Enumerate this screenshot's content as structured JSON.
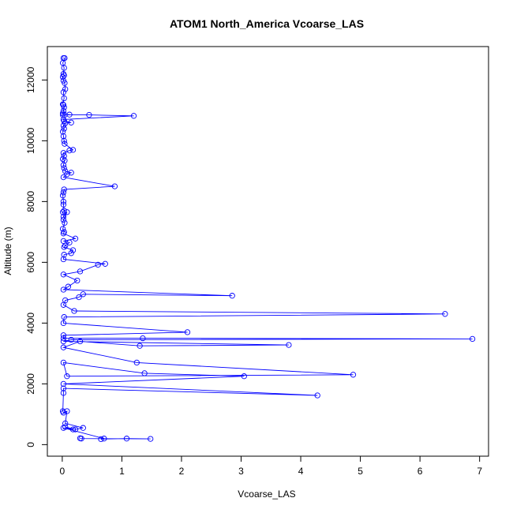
{
  "chart_data": {
    "type": "line",
    "title": "ATOM1 North_America Vcoarse_LAS",
    "xlabel": "Vcoarse_LAS",
    "ylabel": "Altitude (m)",
    "xlim": [
      -0.25,
      7.15
    ],
    "ylim": [
      -380,
      13100
    ],
    "xticks": [
      0,
      1,
      2,
      3,
      4,
      5,
      6,
      7
    ],
    "yticks": [
      0,
      2000,
      4000,
      6000,
      8000,
      10000,
      12000
    ],
    "grid": false,
    "legend": "none",
    "series": [
      {
        "color": "#0000ff",
        "marker": "open-circle",
        "x": [
          0.02,
          0.04,
          0.01,
          0.03,
          0.02,
          0.03,
          0.01,
          0.02,
          0.04,
          0.05,
          0.02,
          0.03,
          0.01,
          0.02,
          0.03,
          0.02,
          0.01,
          0.04,
          0.12,
          0.01,
          0.45,
          1.2,
          0.02,
          0.03,
          0.15,
          0.05,
          0.02,
          0.03,
          0.01,
          0.02,
          0.03,
          0.04,
          0.18,
          0.12,
          0.02,
          0.03,
          0.01,
          0.04,
          0.02,
          0.03,
          0.05,
          0.15,
          0.08,
          0.02,
          0.88,
          0.03,
          0.02,
          0.01,
          0.02,
          0.02,
          0.03,
          0.01,
          0.02,
          0.08,
          0.02,
          0.04,
          0.01,
          0.03,
          0.02,
          0.22,
          0.02,
          0.12,
          0.05,
          0.03,
          0.18,
          0.15,
          0.03,
          0.02,
          0.72,
          0.6,
          0.3,
          0.02,
          0.25,
          0.1,
          0.02,
          2.85,
          0.35,
          0.28,
          0.05,
          0.02,
          0.2,
          6.42,
          0.03,
          0.02,
          2.1,
          0.02,
          0.02,
          1.35,
          6.88,
          0.15,
          0.02,
          3.8,
          1.3,
          0.3,
          0.02,
          1.25,
          4.88,
          0.08,
          0.02,
          1.38,
          3.05,
          0.02,
          4.28,
          0.02,
          0.02,
          0.01,
          0.02,
          0.08,
          0.05,
          0.35,
          0.22,
          0.05,
          0.18,
          0.02,
          0.7,
          0.65,
          1.08,
          1.48,
          0.32,
          0.3
        ]
      },
      {
        "y": [
          12720,
          12720,
          12560,
          12400,
          12200,
          12150,
          12100,
          11980,
          11900,
          11700,
          11600,
          11400,
          11200,
          11180,
          11100,
          10980,
          10900,
          10850,
          10860,
          10850,
          10850,
          10820,
          10700,
          10650,
          10600,
          10580,
          10500,
          10400,
          10300,
          10150,
          10000,
          9900,
          9700,
          9680,
          9600,
          9500,
          9400,
          9350,
          9200,
          9100,
          9000,
          8950,
          8900,
          8800,
          8500,
          8400,
          8300,
          8200,
          8000,
          7900,
          7700,
          7650,
          7500,
          7650,
          7400,
          7300,
          7100,
          7000,
          6950,
          6780,
          6700,
          6650,
          6550,
          6500,
          6400,
          6300,
          6250,
          6100,
          5950,
          5920,
          5700,
          5600,
          5400,
          5200,
          5100,
          4900,
          4950,
          4850,
          4750,
          4600,
          4400,
          4300,
          4200,
          4000,
          3700,
          3600,
          3500,
          3500,
          3480,
          3450,
          3400,
          3280,
          3250,
          3400,
          3200,
          2700,
          2300,
          2250,
          2700,
          2350,
          2250,
          2000,
          1620,
          1850,
          1700,
          1100,
          1050,
          1100,
          700,
          550,
          500,
          580,
          500,
          550,
          200,
          180,
          200,
          190,
          200,
          210
        ]
      }
    ]
  }
}
